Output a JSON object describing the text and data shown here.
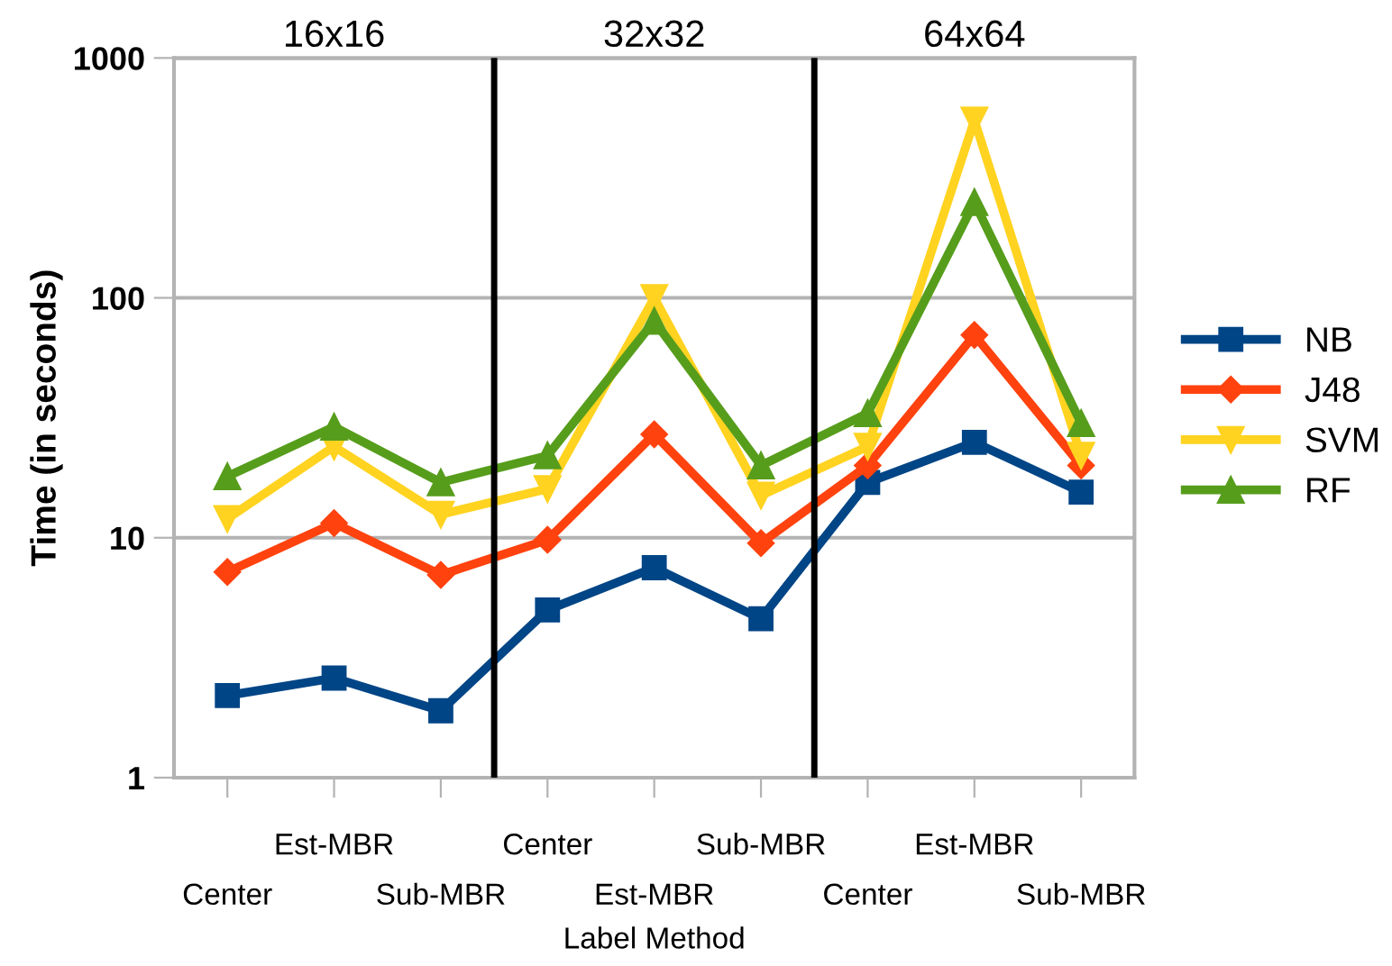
{
  "chart_data": {
    "type": "line",
    "xlabel": "Label Method",
    "ylabel": "Time (in seconds)",
    "categories": [
      "Center",
      "Est-MBR",
      "Sub-MBR",
      "Center",
      "Est-MBR",
      "Sub-MBR",
      "Center",
      "Est-MBR",
      "Sub-MBR"
    ],
    "log": "y",
    "ylim": [
      1,
      1000
    ],
    "yticks": [
      1,
      10,
      100,
      1000
    ],
    "grid": "y",
    "legend": "right",
    "series": [
      {
        "name": "NB",
        "color": "#004586",
        "marker": "square",
        "values": [
          2.2,
          2.6,
          1.9,
          5,
          7.5,
          4.6,
          17,
          25,
          15.5
        ]
      },
      {
        "name": "J48",
        "color": "#ff420e",
        "marker": "diamond",
        "values": [
          7.2,
          11.5,
          7,
          9.8,
          27,
          9.5,
          20,
          70,
          20
        ]
      },
      {
        "name": "SVM",
        "color": "#ffd320",
        "marker": "triangle_down",
        "values": [
          12,
          24,
          12.5,
          16,
          100,
          15,
          24,
          550,
          22
        ]
      },
      {
        "name": "RF",
        "color": "#579d1c",
        "marker": "triangle",
        "values": [
          18,
          29,
          17,
          22,
          80,
          20,
          33,
          250,
          30
        ]
      }
    ],
    "annotations": [
      "16x16",
      "32x32",
      "64x64"
    ]
  }
}
